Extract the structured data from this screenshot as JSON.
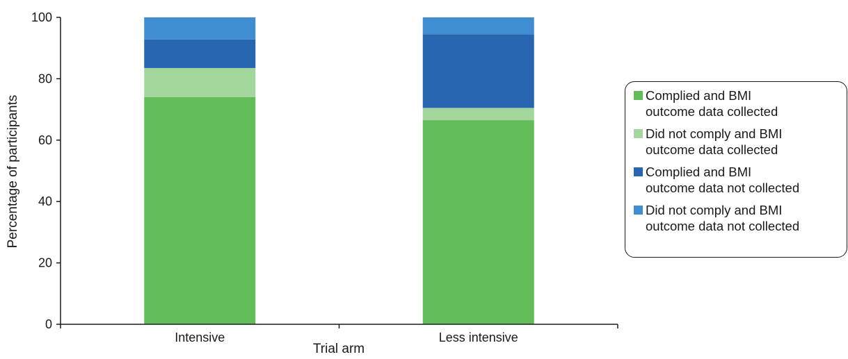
{
  "chart_data": {
    "type": "bar",
    "stacked": true,
    "title": "",
    "xlabel": "Trial arm",
    "ylabel": "Percentage of participants",
    "ylim": [
      0,
      100
    ],
    "yticks": [
      "0",
      "20",
      "40",
      "60",
      "80",
      "100"
    ],
    "categories": [
      "Intensive",
      "Less intensive"
    ],
    "series": [
      {
        "name": "Complied and BMI\noutcome data collected",
        "color": "#62bd58",
        "values": [
          74,
          66.5
        ]
      },
      {
        "name": "Did not comply and BMI\noutcome data collected",
        "color": "#a2d69d",
        "values": [
          9.5,
          4
        ]
      },
      {
        "name": "Complied and BMI\noutcome data not collected",
        "color": "#2866b2",
        "values": [
          9.3,
          24
        ]
      },
      {
        "name": "Did not comply and BMI\noutcome data not collected",
        "color": "#3d8dd0",
        "values": [
          7.2,
          5.5
        ]
      }
    ],
    "legend_position": "right"
  }
}
